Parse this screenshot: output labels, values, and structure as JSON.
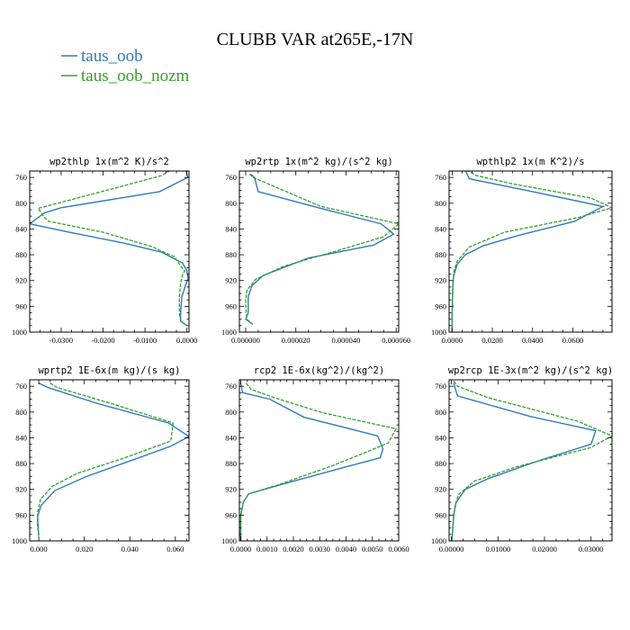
{
  "title": "CLUBB VAR at265E,-17N",
  "legend": [
    {
      "name": "taus_oob",
      "color": "#2f7bb8",
      "dash": "solid"
    },
    {
      "name": "taus_oob_nozm",
      "color": "#33a02c",
      "dash": "dashed"
    }
  ],
  "colors": {
    "taus_oob": "#2f7bb8",
    "taus_oob_nozm": "#33a02c",
    "axis": "#000000"
  },
  "chart_data": [
    {
      "type": "line",
      "title": "wp2thlp   1x(m^2 K)/s^2",
      "xlim": [
        -0.0375,
        0.0005
      ],
      "ylim": [
        1000,
        750
      ],
      "xticks": [
        -0.03,
        -0.02,
        -0.01,
        0.0
      ],
      "xticklabels": [
        "-0.0300",
        "-0.0200",
        "-0.0100",
        "0.0000"
      ],
      "yticks": [
        760,
        800,
        840,
        880,
        920,
        960,
        1000
      ],
      "yticklabels": [
        "760",
        "800",
        "840",
        "880",
        "920",
        "960",
        "1000"
      ],
      "series": [
        {
          "name": "taus_oob",
          "points": [
            [
              -0.0002,
              750
            ],
            [
              0.0002,
              760
            ],
            [
              -0.0065,
              782
            ],
            [
              -0.03,
              807
            ],
            [
              -0.034,
              815
            ],
            [
              -0.0375,
              832
            ],
            [
              -0.028,
              845
            ],
            [
              -0.015,
              862
            ],
            [
              -0.006,
              876
            ],
            [
              -0.001,
              893
            ],
            [
              0.0,
              905
            ],
            [
              0.0003,
              917
            ],
            [
              -0.0002,
              925
            ],
            [
              -0.0012,
              945
            ],
            [
              -0.0015,
              970
            ],
            [
              -0.0015,
              983
            ],
            [
              0.0,
              990
            ]
          ]
        },
        {
          "name": "taus_oob_nozm",
          "points": [
            [
              -0.003,
              745
            ],
            [
              -0.006,
              757
            ],
            [
              -0.018,
              778
            ],
            [
              -0.0355,
              808
            ],
            [
              -0.034,
              822
            ],
            [
              -0.033,
              828
            ],
            [
              -0.02,
              845
            ],
            [
              -0.0085,
              867
            ],
            [
              -0.003,
              883
            ],
            [
              -0.001,
              902
            ],
            [
              -0.0005,
              905
            ],
            [
              -0.001,
              910
            ],
            [
              -0.0015,
              925
            ],
            [
              -0.0018,
              945
            ],
            [
              -0.0018,
              970
            ],
            [
              -0.0015,
              983
            ],
            [
              0.0,
              990
            ]
          ]
        }
      ]
    },
    {
      "type": "line",
      "title": "wp2rtp   1x(m^2 kg)/(s^2 kg)",
      "xlim": [
        -2.5e-06,
        6.1e-05
      ],
      "ylim": [
        1000,
        750
      ],
      "xticks": [
        0.0,
        2e-05,
        4e-05,
        6e-05
      ],
      "xticklabels": [
        "0.000000",
        "0.000020",
        "0.000040",
        "0.000060"
      ],
      "yticks": [
        760,
        800,
        840,
        880,
        920,
        960,
        1000
      ],
      "yticklabels": [
        "760",
        "800",
        "840",
        "880",
        "920",
        "960",
        "1000"
      ],
      "series": [
        {
          "name": "taus_oob",
          "points": [
            [
              2e-06,
              755
            ],
            [
              3.5e-06,
              760
            ],
            [
              5e-06,
              782
            ],
            [
              3e-05,
              808
            ],
            [
              5.4e-05,
              832
            ],
            [
              5.9e-05,
              848
            ],
            [
              5.1e-05,
              865
            ],
            [
              2.5e-05,
              885
            ],
            [
              7e-06,
              912
            ],
            [
              2.5e-06,
              928
            ],
            [
              1e-06,
              945
            ],
            [
              1e-06,
              970
            ],
            [
              0.0,
              980
            ],
            [
              2.8e-06,
              988
            ]
          ]
        },
        {
          "name": "taus_oob_nozm",
          "points": [
            [
              1.5e-06,
              755
            ],
            [
              3e-06,
              760
            ],
            [
              3e-05,
              805
            ],
            [
              6.1e-05,
              832
            ],
            [
              5.5e-05,
              852
            ],
            [
              3.8e-05,
              872
            ],
            [
              1.5e-05,
              898
            ],
            [
              4e-06,
              918
            ],
            [
              5e-07,
              935
            ],
            [
              0.0,
              950
            ],
            [
              2e-07,
              970
            ],
            [
              5e-07,
              980
            ],
            [
              2.8e-06,
              988
            ]
          ]
        }
      ]
    },
    {
      "type": "line",
      "title": "wpthlp2   1x(m K^2)/s",
      "xlim": [
        -0.0015,
        0.0795
      ],
      "ylim": [
        1000,
        750
      ],
      "xticks": [
        0.0,
        0.02,
        0.04,
        0.06
      ],
      "xticklabels": [
        "0.0000",
        "0.0200",
        "0.0400",
        "0.0600"
      ],
      "yticks": [
        760,
        800,
        840,
        880,
        920,
        960,
        1000
      ],
      "yticklabels": [
        "760",
        "800",
        "840",
        "880",
        "920",
        "960",
        "1000"
      ],
      "series": [
        {
          "name": "taus_oob",
          "points": [
            [
              0.006,
              745
            ],
            [
              0.0085,
              762
            ],
            [
              0.04,
              782
            ],
            [
              0.075,
              805
            ],
            [
              0.061,
              828
            ],
            [
              0.033,
              850
            ],
            [
              0.0155,
              866
            ],
            [
              0.0065,
              880
            ],
            [
              0.0025,
              895
            ],
            [
              0.0006,
              915
            ],
            [
              0.0002,
              945
            ],
            [
              0.0,
              975
            ],
            [
              0.0,
              1000
            ]
          ]
        },
        {
          "name": "taus_oob_nozm",
          "points": [
            [
              0.005,
              745
            ],
            [
              0.012,
              757
            ],
            [
              0.03,
              770
            ],
            [
              0.069,
              792
            ],
            [
              0.0795,
              807
            ],
            [
              0.063,
              822
            ],
            [
              0.026,
              845
            ],
            [
              0.0085,
              868
            ],
            [
              0.0025,
              890
            ],
            [
              0.0009,
              905
            ],
            [
              0.0002,
              935
            ],
            [
              0.0,
              970
            ],
            [
              0.0,
              1000
            ]
          ]
        }
      ]
    },
    {
      "type": "line",
      "title": "wprtp2   1E-6x(m kg)/(s kg)",
      "xlim": [
        -0.004,
        0.066
      ],
      "ylim": [
        1000,
        750
      ],
      "xticks": [
        0.0,
        0.02,
        0.04,
        0.06
      ],
      "xticklabels": [
        "0.000",
        "0.020",
        "0.040",
        "0.060"
      ],
      "yticks": [
        760,
        800,
        840,
        880,
        920,
        960,
        1000
      ],
      "yticklabels": [
        "760",
        "800",
        "840",
        "880",
        "920",
        "960",
        "1000"
      ],
      "series": [
        {
          "name": "taus_oob",
          "points": [
            [
              0.0,
              755
            ],
            [
              0.004,
              762
            ],
            [
              0.026,
              787
            ],
            [
              0.057,
              817
            ],
            [
              0.066,
              838
            ],
            [
              0.058,
              853
            ],
            [
              0.04,
              876
            ],
            [
              0.021,
              900
            ],
            [
              0.007,
              922
            ],
            [
              0.001,
              945
            ],
            [
              -0.0005,
              962
            ],
            [
              -0.0003,
              980
            ],
            [
              0.0,
              992
            ]
          ]
        },
        {
          "name": "taus_oob_nozm",
          "points": [
            [
              0.005,
              755
            ],
            [
              0.008,
              762
            ],
            [
              0.032,
              787
            ],
            [
              0.059,
              817
            ],
            [
              0.058,
              845
            ],
            [
              0.037,
              872
            ],
            [
              0.017,
              895
            ],
            [
              0.006,
              915
            ],
            [
              0.0008,
              935
            ],
            [
              -0.0005,
              955
            ],
            [
              -0.0006,
              975
            ],
            [
              0.0,
              992
            ]
          ]
        }
      ]
    },
    {
      "type": "line",
      "title": "rcp2   1E-6x(kg^2)/(kg^2)",
      "xlim": [
        -5e-05,
        0.006
      ],
      "ylim": [
        1000,
        750
      ],
      "xticks": [
        0.0,
        0.001,
        0.002,
        0.003,
        0.004,
        0.005,
        0.006
      ],
      "xticklabels": [
        "0.0000",
        "0.0010",
        "0.0020",
        "0.0030",
        "0.0040",
        "0.0050",
        "0.0060"
      ],
      "yticks": [
        760,
        800,
        840,
        880,
        920,
        960,
        1000
      ],
      "yticklabels": [
        "760",
        "800",
        "840",
        "880",
        "920",
        "960",
        "1000"
      ],
      "series": [
        {
          "name": "taus_oob",
          "points": [
            [
              0.0,
              755
            ],
            [
              7e-05,
              770
            ],
            [
              0.0011,
              780
            ],
            [
              0.0024,
              808
            ],
            [
              0.0052,
              837
            ],
            [
              0.0054,
              857
            ],
            [
              0.0053,
              871
            ],
            [
              0.004,
              885
            ],
            [
              0.0015,
              913
            ],
            [
              0.0003,
              927
            ],
            [
              0.0001,
              940
            ],
            [
              0.0,
              960
            ],
            [
              0.0,
              1000
            ]
          ]
        },
        {
          "name": "taus_oob_nozm",
          "points": [
            [
              0.0002,
              755
            ],
            [
              0.0004,
              765
            ],
            [
              0.0013,
              778
            ],
            [
              0.0031,
              801
            ],
            [
              0.0059,
              826
            ],
            [
              0.0056,
              848
            ],
            [
              0.0046,
              865
            ],
            [
              0.0035,
              883
            ],
            [
              0.0015,
              912
            ],
            [
              0.0003,
              927
            ],
            [
              0.0001,
              940
            ],
            [
              0.0,
              960
            ],
            [
              0.0,
              1000
            ]
          ]
        }
      ]
    },
    {
      "type": "line",
      "title": "wp2rcp   1E-3x(m^2 kg)/(s^2 kg)",
      "xlim": [
        -0.0005,
        0.0345
      ],
      "ylim": [
        1000,
        750
      ],
      "xticks": [
        0.0,
        0.01,
        0.02,
        0.03
      ],
      "xticklabels": [
        "0.00000",
        "0.01000",
        "0.02000",
        "0.03000"
      ],
      "yticks": [
        760,
        800,
        840,
        880,
        920,
        960,
        1000
      ],
      "yticklabels": [
        "760",
        "800",
        "840",
        "880",
        "920",
        "960",
        "1000"
      ],
      "series": [
        {
          "name": "taus_oob",
          "points": [
            [
              0.0005,
              755
            ],
            [
              0.0008,
              763
            ],
            [
              0.0013,
              775
            ],
            [
              0.017,
              807
            ],
            [
              0.031,
              829
            ],
            [
              0.03,
              850
            ],
            [
              0.019,
              875
            ],
            [
              0.008,
              903
            ],
            [
              0.003,
              920
            ],
            [
              0.001,
              940
            ],
            [
              0.0005,
              960
            ],
            [
              0.0001,
              1000
            ]
          ]
        },
        {
          "name": "taus_oob_nozm",
          "points": [
            [
              0.0005,
              752
            ],
            [
              0.0013,
              760
            ],
            [
              0.008,
              778
            ],
            [
              0.027,
              814
            ],
            [
              0.0345,
              837
            ],
            [
              0.03,
              855
            ],
            [
              0.014,
              885
            ],
            [
              0.005,
              907
            ],
            [
              0.0015,
              928
            ],
            [
              0.0008,
              945
            ],
            [
              0.0005,
              960
            ],
            [
              0.0001,
              1000
            ]
          ]
        }
      ]
    }
  ]
}
